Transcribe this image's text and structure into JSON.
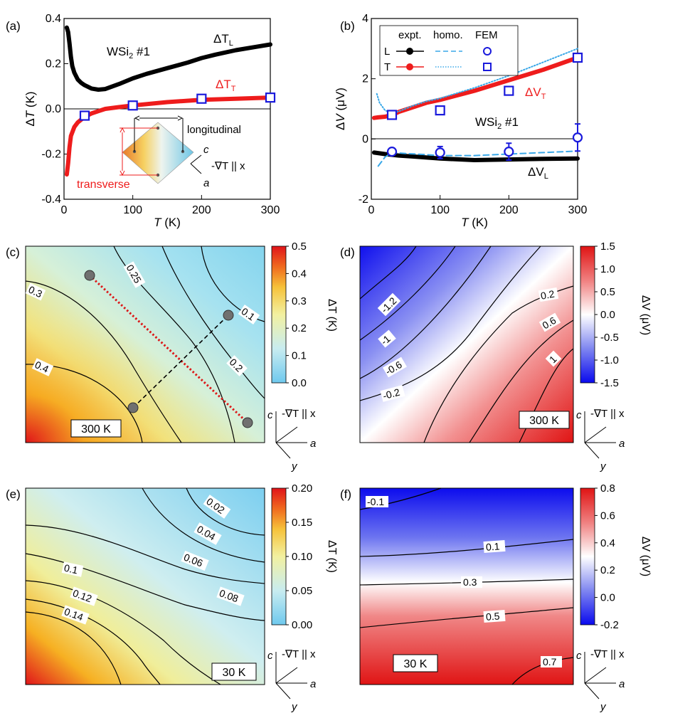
{
  "panel_labels": [
    "(a)",
    "(b)",
    "(c)",
    "(d)",
    "(e)",
    "(f)"
  ],
  "chart_data": [
    {
      "panel": "(a)",
      "type": "line",
      "ylabel_parts": [
        "Δ",
        "T",
        " (K)"
      ],
      "xlabel_parts": [
        "T",
        " (K)"
      ],
      "xlim": [
        0,
        300
      ],
      "ylim": [
        -0.4,
        0.4
      ],
      "x_ticks": [
        "0",
        "100",
        "200",
        "300"
      ],
      "y_ticks": [
        "-0.4",
        "-0.2",
        "0.0",
        "0.2",
        "0.4"
      ],
      "sample_label": "WSi",
      "sample_sub": "2",
      "sample_suffix": " #1",
      "series": [
        {
          "name": "ΔT_L",
          "label_main": "ΔT",
          "label_sub": "L",
          "color": "#000000",
          "x": [
            4,
            6,
            8,
            10,
            12,
            15,
            20,
            25,
            30,
            40,
            50,
            60,
            80,
            100,
            120,
            150,
            180,
            200,
            220,
            250,
            280,
            300
          ],
          "y": [
            0.36,
            0.34,
            0.29,
            0.23,
            0.19,
            0.16,
            0.13,
            0.115,
            0.105,
            0.09,
            0.085,
            0.088,
            0.11,
            0.135,
            0.155,
            0.18,
            0.205,
            0.225,
            0.24,
            0.26,
            0.275,
            0.285
          ]
        },
        {
          "name": "ΔT_T",
          "label_main": "ΔT",
          "label_sub": "T",
          "color": "#ee1c1c",
          "x": [
            4,
            6,
            8,
            10,
            15,
            20,
            30,
            40,
            50,
            60,
            80,
            100,
            150,
            200,
            250,
            300
          ],
          "y": [
            -0.29,
            -0.24,
            -0.17,
            -0.12,
            -0.08,
            -0.06,
            -0.035,
            -0.02,
            -0.01,
            0.0,
            0.008,
            0.015,
            0.03,
            0.04,
            0.045,
            0.05
          ]
        },
        {
          "name": "FEM",
          "marker": "square",
          "color": "#1a1adc",
          "x": [
            30,
            100,
            200,
            300
          ],
          "y": [
            -0.03,
            0.015,
            0.045,
            0.05
          ]
        }
      ],
      "inset": {
        "longitudinal": "longitudinal",
        "transverse": "transverse",
        "axis_c": "c",
        "axis_a": "a",
        "gradient_label": "-∇T || x"
      }
    },
    {
      "panel": "(b)",
      "type": "line",
      "ylabel_parts": [
        "Δ",
        "V",
        " (μV)"
      ],
      "xlabel_parts": [
        "T",
        " (K)"
      ],
      "xlim": [
        0,
        300
      ],
      "ylim": [
        -2,
        4
      ],
      "x_ticks": [
        "0",
        "100",
        "200",
        "300"
      ],
      "y_ticks": [
        "-2",
        "0",
        "2",
        "4"
      ],
      "sample_label": "WSi",
      "sample_sub": "2",
      "sample_suffix": " #1",
      "legend": {
        "headers": [
          "expt.",
          "homo.",
          "FEM"
        ],
        "rows": [
          "L",
          "T"
        ],
        "placement": "top-left"
      },
      "series": [
        {
          "name": "ΔV_T expt.",
          "label_main": "ΔV",
          "label_sub": "T",
          "color": "#ee1c1c",
          "x": [
            4,
            10,
            20,
            30,
            40,
            60,
            80,
            100,
            150,
            200,
            250,
            300
          ],
          "y": [
            0.7,
            0.72,
            0.74,
            0.8,
            0.9,
            1.05,
            1.2,
            1.3,
            1.6,
            1.95,
            2.3,
            2.7
          ]
        },
        {
          "name": "ΔV_T homo.",
          "color": "#3aa8e8",
          "style": "dotted",
          "x": [
            8,
            12,
            20,
            30,
            40,
            60,
            80,
            100,
            150,
            200,
            250,
            300
          ],
          "y": [
            1.5,
            1.2,
            0.95,
            0.85,
            0.92,
            1.1,
            1.25,
            1.35,
            1.7,
            2.1,
            2.55,
            3.0
          ]
        },
        {
          "name": "ΔV_T FEM",
          "marker": "square",
          "color": "#1a1adc",
          "x": [
            30,
            100,
            200,
            300
          ],
          "y": [
            0.8,
            0.95,
            1.6,
            2.7
          ]
        },
        {
          "name": "ΔV_L expt.",
          "label_main": "ΔV",
          "label_sub": "L",
          "color": "#000000",
          "x": [
            4,
            20,
            40,
            60,
            100,
            150,
            200,
            250,
            300
          ],
          "y": [
            -0.45,
            -0.5,
            -0.55,
            -0.58,
            -0.65,
            -0.7,
            -0.68,
            -0.66,
            -0.65
          ]
        },
        {
          "name": "ΔV_L homo.",
          "color": "#3aa8e8",
          "style": "dashed",
          "x": [
            10,
            20,
            30,
            50,
            80,
            100,
            150,
            200,
            250,
            300
          ],
          "y": [
            -0.9,
            -0.6,
            -0.45,
            -0.48,
            -0.52,
            -0.55,
            -0.55,
            -0.5,
            -0.45,
            -0.4
          ]
        },
        {
          "name": "ΔV_L FEM",
          "marker": "circle",
          "color": "#1a1adc",
          "x": [
            30,
            100,
            200,
            300
          ],
          "y": [
            -0.42,
            -0.45,
            -0.42,
            0.05
          ],
          "err": [
            0.12,
            0.2,
            0.28,
            0.45
          ]
        }
      ]
    },
    {
      "panel": "(c)",
      "type": "heatmap",
      "temperature": "300 K",
      "colorbar_label": "ΔT (K)",
      "colorbar_ticks": [
        "0.0",
        "0.1",
        "0.2",
        "0.3",
        "0.4",
        "0.5"
      ],
      "colorbar_range": [
        0.0,
        0.5
      ],
      "colormap": [
        "#6fc9ee",
        "#c8ecf0",
        "#f2f0a0",
        "#f6c23a",
        "#f06a1e",
        "#e0141a"
      ],
      "contour_labels": [
        "0.3",
        "0.25",
        "0.1",
        "0.2",
        "0.4"
      ],
      "axes": {
        "c": "c",
        "a": "a",
        "y": "y",
        "gradient": "-∇T || x"
      }
    },
    {
      "panel": "(d)",
      "type": "heatmap",
      "temperature": "300 K",
      "colorbar_label": "ΔV (μV)",
      "colorbar_ticks": [
        "-1.5",
        "-1.0",
        "-0.5",
        "0.0",
        "0.5",
        "1.0",
        "1.5"
      ],
      "colorbar_range": [
        -1.5,
        1.5
      ],
      "colormap": [
        "#0a0aee",
        "#7f86f0",
        "#ffffff",
        "#f08080",
        "#e01414"
      ],
      "contour_labels": [
        "-1.2",
        "-1",
        "-0.6",
        "-0.2",
        "0.2",
        "0.6",
        "1"
      ],
      "axes": {
        "c": "c",
        "a": "a",
        "y": "y",
        "gradient": "-∇T || x"
      }
    },
    {
      "panel": "(e)",
      "type": "heatmap",
      "temperature": "30 K",
      "colorbar_label": "ΔT (K)",
      "colorbar_ticks": [
        "0.00",
        "0.05",
        "0.10",
        "0.15",
        "0.20"
      ],
      "colorbar_range": [
        0.0,
        0.2
      ],
      "colormap": [
        "#6fc9ee",
        "#c8ecf0",
        "#f2f0a0",
        "#f6c23a",
        "#f06a1e",
        "#e0141a"
      ],
      "contour_labels": [
        "0.02",
        "0.04",
        "0.06",
        "0.1",
        "0.08",
        "0.12",
        "0.14"
      ],
      "axes": {
        "c": "c",
        "a": "a",
        "y": "y",
        "gradient": "-∇T || x"
      }
    },
    {
      "panel": "(f)",
      "type": "heatmap",
      "temperature": "30 K",
      "colorbar_label": "ΔV (μV)",
      "colorbar_ticks": [
        "-0.2",
        "0.0",
        "0.2",
        "0.4",
        "0.6",
        "0.8"
      ],
      "colorbar_range": [
        -0.2,
        0.8
      ],
      "colormap": [
        "#0a0aee",
        "#7f86f0",
        "#ffffff",
        "#f08080",
        "#e01414"
      ],
      "contour_labels": [
        "-0.1",
        "0.1",
        "0.3",
        "0.5",
        "0.7"
      ],
      "axes": {
        "c": "c",
        "a": "a",
        "y": "y",
        "gradient": "-∇T || x"
      }
    }
  ]
}
